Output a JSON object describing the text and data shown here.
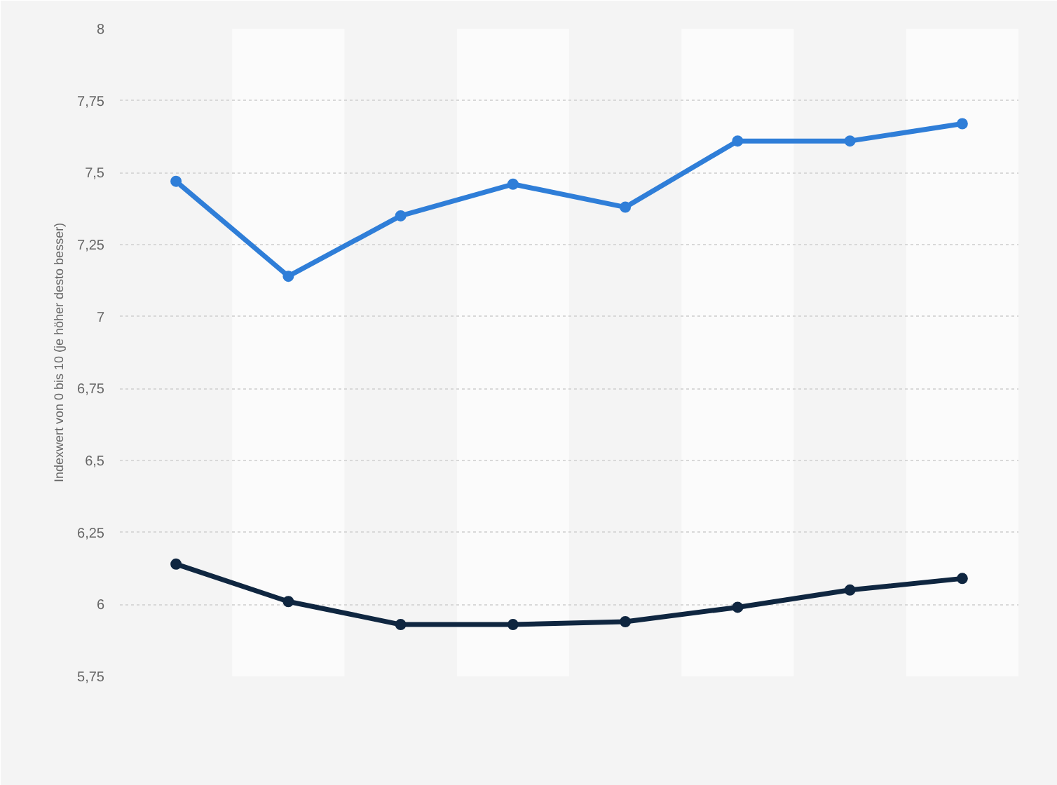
{
  "chart_data": {
    "type": "line",
    "ylabel": "Indexwert von 0 bis 10 (je höher desto besser)",
    "categories": [
      null,
      null,
      null,
      null,
      null,
      null,
      null,
      null
    ],
    "series": [
      {
        "color": "#2f7ed8",
        "values": [
          7.47,
          7.14,
          7.35,
          7.46,
          7.38,
          7.61,
          7.61,
          7.67
        ]
      },
      {
        "color": "#0f2640",
        "values": [
          6.14,
          6.01,
          5.93,
          5.93,
          5.94,
          5.99,
          6.05,
          6.09
        ]
      }
    ],
    "ylim": [
      5.75,
      8
    ],
    "yticks": [
      {
        "value": 5.75,
        "label": "5,75"
      },
      6,
      {
        "value": 6.25,
        "label": "6,25"
      },
      {
        "value": 6.5,
        "label": "6,5"
      },
      {
        "value": 6.75,
        "label": "6,75"
      },
      7,
      {
        "value": 7.25,
        "label": "7,25"
      },
      {
        "value": 7.5,
        "label": "7,5"
      },
      {
        "value": 7.75,
        "label": "7,75"
      },
      8
    ],
    "grid": "y",
    "marker": "circle",
    "line_style": "solid"
  }
}
